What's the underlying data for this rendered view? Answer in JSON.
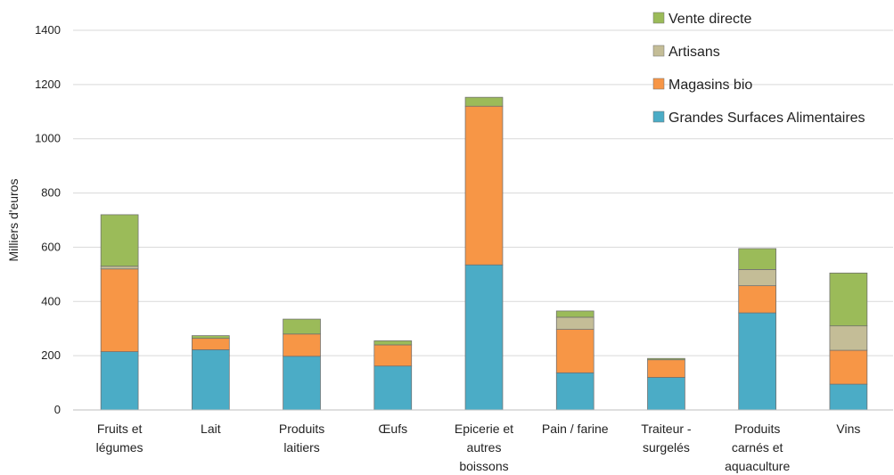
{
  "chart_data": {
    "type": "bar",
    "stacked": true,
    "ylabel": "Milliers d'euros",
    "ylim": [
      0,
      1400
    ],
    "yticks": [
      0,
      200,
      400,
      600,
      800,
      1000,
      1200,
      1400
    ],
    "grid": true,
    "legend_position": "top-right",
    "categories": [
      [
        "Fruits et",
        "légumes"
      ],
      [
        "Lait"
      ],
      [
        "Produits",
        "laitiers"
      ],
      [
        "Œufs"
      ],
      [
        "Epicerie et",
        "autres",
        "boissons"
      ],
      [
        "Pain / farine"
      ],
      [
        "Traiteur -",
        "surgelés"
      ],
      [
        "Produits",
        "carnés et",
        "aquaculture"
      ],
      [
        "Vins"
      ]
    ],
    "series": [
      {
        "name": "Grandes Surfaces Alimentaires",
        "color": "#4BACC6",
        "values": [
          215,
          222,
          198,
          162,
          535,
          137,
          120,
          358,
          95
        ]
      },
      {
        "name": "Magasins bio",
        "color": "#F79646",
        "values": [
          305,
          42,
          82,
          78,
          585,
          160,
          65,
          100,
          125
        ]
      },
      {
        "name": "Artisans",
        "color": "#C4BD97",
        "values": [
          10,
          0,
          0,
          0,
          0,
          45,
          0,
          60,
          90
        ]
      },
      {
        "name": "Vente directe",
        "color": "#9BBB59",
        "values": [
          190,
          10,
          55,
          15,
          33,
          23,
          5,
          77,
          195
        ]
      }
    ]
  }
}
